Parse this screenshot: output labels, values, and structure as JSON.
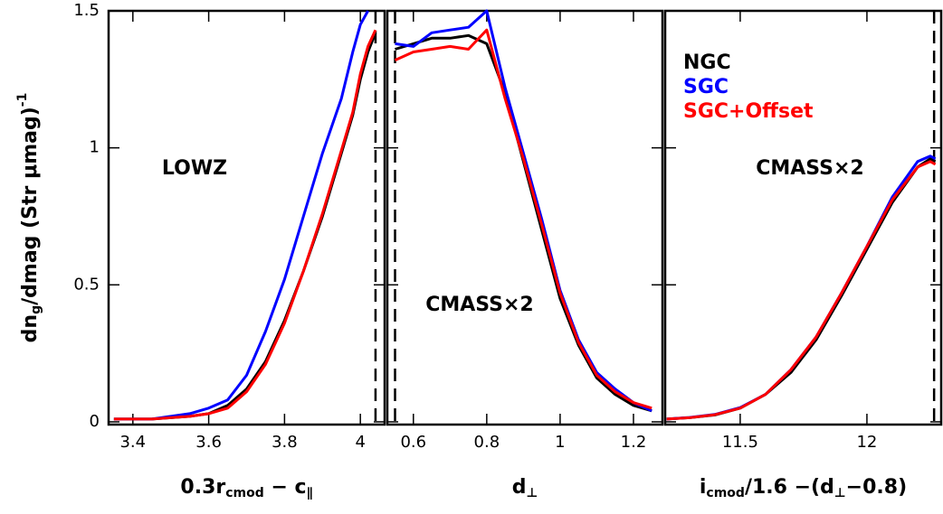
{
  "chart_data": [
    {
      "type": "line",
      "annotation": "LOWZ",
      "xlabel": [
        {
          "text": "0.3r"
        },
        {
          "text": "cmod",
          "sub": true
        },
        {
          "text": " − c"
        },
        {
          "text": "∥",
          "sub": true
        }
      ],
      "ylabel": [
        {
          "text": "dn"
        },
        {
          "text": "g",
          "sub": true
        },
        {
          "text": "/dmag (Str μmag)"
        },
        {
          "text": "-1",
          "sup": true
        }
      ],
      "xlim": [
        3.336,
        4.064
      ],
      "ylim": [
        -0.01,
        1.5
      ],
      "xticks": [
        3.4,
        3.6,
        3.8,
        4
      ],
      "yticks": [
        0,
        0.5,
        1,
        1.5
      ],
      "cut_lines": [
        4.04
      ],
      "x": [
        3.35,
        3.45,
        3.55,
        3.6,
        3.65,
        3.7,
        3.75,
        3.8,
        3.85,
        3.9,
        3.95,
        3.98,
        4.0,
        4.02,
        4.04
      ],
      "series": [
        {
          "name": "NGC",
          "color": "#000000",
          "values": [
            0.01,
            0.01,
            0.02,
            0.03,
            0.06,
            0.12,
            0.22,
            0.37,
            0.55,
            0.75,
            0.98,
            1.12,
            1.25,
            1.35,
            1.42
          ]
        },
        {
          "name": "SGC",
          "color": "#0000ff",
          "values": [
            0.01,
            0.01,
            0.03,
            0.05,
            0.08,
            0.17,
            0.33,
            0.52,
            0.75,
            0.98,
            1.18,
            1.35,
            1.45,
            1.5,
            null
          ]
        },
        {
          "name": "SGC+Offset",
          "color": "#ff0000",
          "values": [
            0.01,
            0.01,
            0.02,
            0.03,
            0.05,
            0.11,
            0.21,
            0.36,
            0.55,
            0.76,
            0.99,
            1.13,
            1.27,
            1.37,
            1.43
          ]
        }
      ]
    },
    {
      "type": "line",
      "annotation": "CMASS×2",
      "xlabel": [
        {
          "text": "d"
        },
        {
          "text": "⊥",
          "sub": true
        }
      ],
      "xlim": [
        0.529,
        1.279
      ],
      "ylim": [
        -0.01,
        1.5
      ],
      "xticks": [
        0.6,
        0.8,
        1,
        1.2
      ],
      "cut_lines": [
        0.55
      ],
      "x": [
        0.55,
        0.6,
        0.65,
        0.7,
        0.75,
        0.8,
        0.85,
        0.9,
        0.95,
        1.0,
        1.05,
        1.1,
        1.15,
        1.2,
        1.25
      ],
      "series": [
        {
          "name": "NGC",
          "color": "#000000",
          "values": [
            1.36,
            1.38,
            1.4,
            1.4,
            1.41,
            1.38,
            1.2,
            0.95,
            0.7,
            0.45,
            0.28,
            0.16,
            0.1,
            0.06,
            0.04
          ]
        },
        {
          "name": "SGC",
          "color": "#0000ff",
          "values": [
            1.38,
            1.37,
            1.42,
            1.43,
            1.44,
            1.5,
            1.22,
            0.98,
            0.74,
            0.48,
            0.3,
            0.18,
            0.12,
            0.07,
            0.04
          ]
        },
        {
          "name": "SGC+Offset",
          "color": "#ff0000",
          "values": [
            1.32,
            1.35,
            1.36,
            1.37,
            1.36,
            1.43,
            1.18,
            0.96,
            0.72,
            0.47,
            0.29,
            0.17,
            0.11,
            0.07,
            0.05
          ]
        }
      ]
    },
    {
      "type": "line",
      "annotation": "CMASS×2",
      "legend": "upper left",
      "xlabel": [
        {
          "text": "i"
        },
        {
          "text": "cmod",
          "sub": true
        },
        {
          "text": "/1.6 −(d"
        },
        {
          "text": "⊥",
          "sub": true
        },
        {
          "text": "−0.8)"
        }
      ],
      "xlim": [
        11.204,
        12.293
      ],
      "ylim": [
        -0.01,
        1.5
      ],
      "xticks": [
        11.5,
        12
      ],
      "cut_lines": [
        12.265
      ],
      "x": [
        11.21,
        11.3,
        11.4,
        11.5,
        11.6,
        11.7,
        11.8,
        11.9,
        12.0,
        12.1,
        12.2,
        12.25,
        12.27
      ],
      "series": [
        {
          "name": "NGC",
          "color": "#000000",
          "values": [
            0.01,
            0.015,
            0.025,
            0.05,
            0.1,
            0.18,
            0.3,
            0.46,
            0.63,
            0.8,
            0.93,
            0.96,
            0.95
          ]
        },
        {
          "name": "SGC",
          "color": "#0000ff",
          "values": [
            0.01,
            0.016,
            0.027,
            0.052,
            0.1,
            0.19,
            0.31,
            0.47,
            0.64,
            0.82,
            0.95,
            0.97,
            0.96
          ]
        },
        {
          "name": "SGC+Offset",
          "color": "#ff0000",
          "values": [
            0.01,
            0.015,
            0.026,
            0.05,
            0.1,
            0.19,
            0.31,
            0.47,
            0.64,
            0.81,
            0.93,
            0.95,
            0.94
          ]
        }
      ]
    }
  ]
}
